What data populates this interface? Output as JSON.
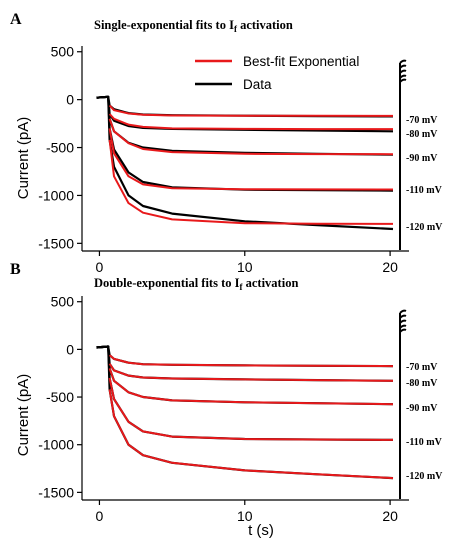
{
  "colors": {
    "fit": "#e8191b",
    "data": "#000000"
  },
  "x_label": "t (s)",
  "y_label": "Current (pA)",
  "x_ticks": [
    0,
    10,
    20
  ],
  "y_ticks": [
    500,
    0,
    -500,
    -1000,
    -1500
  ],
  "legend": {
    "fit": "Best-fit Exponential",
    "data": "Data"
  },
  "panels": [
    {
      "letter": "A",
      "title_main": "Single-exponential fits to I",
      "title_sub": "f",
      "title_end": " activation"
    },
    {
      "letter": "B",
      "title_main": "Double-exponential fits to I",
      "title_sub": "f",
      "title_end": " activation"
    }
  ],
  "chart_data": [
    {
      "type": "line",
      "title": "Single-exponential fits to If activation",
      "xlabel": "",
      "ylabel": "Current (pA)",
      "xlim": [
        -1.2,
        21.3
      ],
      "ylim": [
        -1580,
        560
      ],
      "x_ticks": [
        0,
        10,
        20
      ],
      "y_ticks": [
        500,
        0,
        -500,
        -1000,
        -1500
      ],
      "legend_position": "top-right",
      "series": [
        {
          "name": "Data",
          "label": "-70 mV",
          "x": [
            -0.2,
            0.6,
            0.7,
            1,
            2,
            3,
            5,
            10,
            15,
            20.2
          ],
          "y": [
            20,
            30,
            -60,
            -100,
            -140,
            -155,
            -162,
            -168,
            -172,
            -175
          ]
        },
        {
          "name": "Data",
          "label": "-80 mV",
          "x": [
            -0.2,
            0.6,
            0.7,
            1,
            2,
            3,
            5,
            10,
            15,
            20.2
          ],
          "y": [
            20,
            30,
            -150,
            -220,
            -275,
            -295,
            -305,
            -315,
            -322,
            -330
          ]
        },
        {
          "name": "Data",
          "label": "-90 mV",
          "x": [
            -0.2,
            0.6,
            0.7,
            1,
            2,
            3,
            5,
            10,
            15,
            20.2
          ],
          "y": [
            20,
            30,
            -200,
            -330,
            -450,
            -500,
            -535,
            -555,
            -565,
            -575
          ]
        },
        {
          "name": "Data",
          "label": "-110 mV",
          "x": [
            -0.2,
            0.6,
            0.7,
            1,
            2,
            3,
            5,
            10,
            15,
            20.2
          ],
          "y": [
            20,
            30,
            -300,
            -520,
            -760,
            -860,
            -915,
            -940,
            -945,
            -950
          ]
        },
        {
          "name": "Data",
          "label": "-120 mV",
          "x": [
            -0.2,
            0.6,
            0.7,
            1,
            2,
            3,
            5,
            10,
            15,
            20.2
          ],
          "y": [
            20,
            30,
            -420,
            -700,
            -1000,
            -1110,
            -1190,
            -1270,
            -1310,
            -1350
          ]
        },
        {
          "name": "Best-fit Exponential",
          "x": [
            0.7,
            1,
            2,
            3,
            5,
            10,
            15,
            20.2
          ],
          "y": [
            -60,
            -110,
            -145,
            -158,
            -165,
            -168,
            -169,
            -170
          ]
        },
        {
          "name": "Best-fit Exponential",
          "x": [
            0.7,
            1,
            2,
            3,
            5,
            10,
            15,
            20.2
          ],
          "y": [
            -150,
            -200,
            -260,
            -285,
            -300,
            -305,
            -307,
            -308
          ]
        },
        {
          "name": "Best-fit Exponential",
          "x": [
            0.7,
            1,
            2,
            3,
            5,
            10,
            15,
            20.2
          ],
          "y": [
            -200,
            -330,
            -455,
            -515,
            -548,
            -565,
            -568,
            -570
          ]
        },
        {
          "name": "Best-fit Exponential",
          "x": [
            0.7,
            1,
            2,
            3,
            5,
            10,
            15,
            20.2
          ],
          "y": [
            -300,
            -560,
            -800,
            -885,
            -925,
            -935,
            -937,
            -938
          ]
        },
        {
          "name": "Best-fit Exponential",
          "x": [
            0.7,
            1,
            2,
            3,
            5,
            10,
            15,
            20.2
          ],
          "y": [
            -420,
            -800,
            -1080,
            -1180,
            -1250,
            -1290,
            -1295,
            -1297
          ]
        }
      ]
    },
    {
      "type": "line",
      "title": "Double-exponential fits to If activation",
      "xlabel": "t (s)",
      "ylabel": "Current (pA)",
      "xlim": [
        -1.2,
        21.3
      ],
      "ylim": [
        -1580,
        560
      ],
      "x_ticks": [
        0,
        10,
        20
      ],
      "y_ticks": [
        500,
        0,
        -500,
        -1000,
        -1500
      ],
      "series": [
        {
          "name": "Data",
          "label": "-70 mV",
          "x": [
            -0.2,
            0.6,
            0.7,
            1,
            2,
            3,
            5,
            10,
            15,
            20.2
          ],
          "y": [
            20,
            30,
            -60,
            -100,
            -140,
            -155,
            -162,
            -168,
            -172,
            -175
          ]
        },
        {
          "name": "Data",
          "label": "-80 mV",
          "x": [
            -0.2,
            0.6,
            0.7,
            1,
            2,
            3,
            5,
            10,
            15,
            20.2
          ],
          "y": [
            20,
            30,
            -150,
            -220,
            -275,
            -295,
            -305,
            -315,
            -322,
            -330
          ]
        },
        {
          "name": "Data",
          "label": "-90 mV",
          "x": [
            -0.2,
            0.6,
            0.7,
            1,
            2,
            3,
            5,
            10,
            15,
            20.2
          ],
          "y": [
            20,
            30,
            -200,
            -330,
            -450,
            -500,
            -535,
            -555,
            -565,
            -575
          ]
        },
        {
          "name": "Data",
          "label": "-110 mV",
          "x": [
            -0.2,
            0.6,
            0.7,
            1,
            2,
            3,
            5,
            10,
            15,
            20.2
          ],
          "y": [
            20,
            30,
            -300,
            -520,
            -760,
            -860,
            -915,
            -940,
            -945,
            -950
          ]
        },
        {
          "name": "Data",
          "label": "-120 mV",
          "x": [
            -0.2,
            0.6,
            0.7,
            1,
            2,
            3,
            5,
            10,
            15,
            20.2
          ],
          "y": [
            20,
            30,
            -420,
            -700,
            -1000,
            -1110,
            -1190,
            -1270,
            -1310,
            -1350
          ]
        },
        {
          "name": "Best-fit Exponential",
          "x": [
            0.7,
            1,
            2,
            3,
            5,
            10,
            15,
            20.2
          ],
          "y": [
            -60,
            -100,
            -140,
            -155,
            -162,
            -168,
            -172,
            -175
          ]
        },
        {
          "name": "Best-fit Exponential",
          "x": [
            0.7,
            1,
            2,
            3,
            5,
            10,
            15,
            20.2
          ],
          "y": [
            -150,
            -220,
            -275,
            -295,
            -305,
            -315,
            -322,
            -330
          ]
        },
        {
          "name": "Best-fit Exponential",
          "x": [
            0.7,
            1,
            2,
            3,
            5,
            10,
            15,
            20.2
          ],
          "y": [
            -200,
            -330,
            -450,
            -500,
            -535,
            -555,
            -565,
            -575
          ]
        },
        {
          "name": "Best-fit Exponential",
          "x": [
            0.7,
            1,
            2,
            3,
            5,
            10,
            15,
            20.2
          ],
          "y": [
            -300,
            -520,
            -760,
            -860,
            -915,
            -940,
            -945,
            -950
          ]
        },
        {
          "name": "Best-fit Exponential",
          "x": [
            0.7,
            1,
            2,
            3,
            5,
            10,
            15,
            20.2
          ],
          "y": [
            -420,
            -700,
            -1000,
            -1110,
            -1190,
            -1270,
            -1310,
            -1350
          ]
        }
      ]
    }
  ]
}
